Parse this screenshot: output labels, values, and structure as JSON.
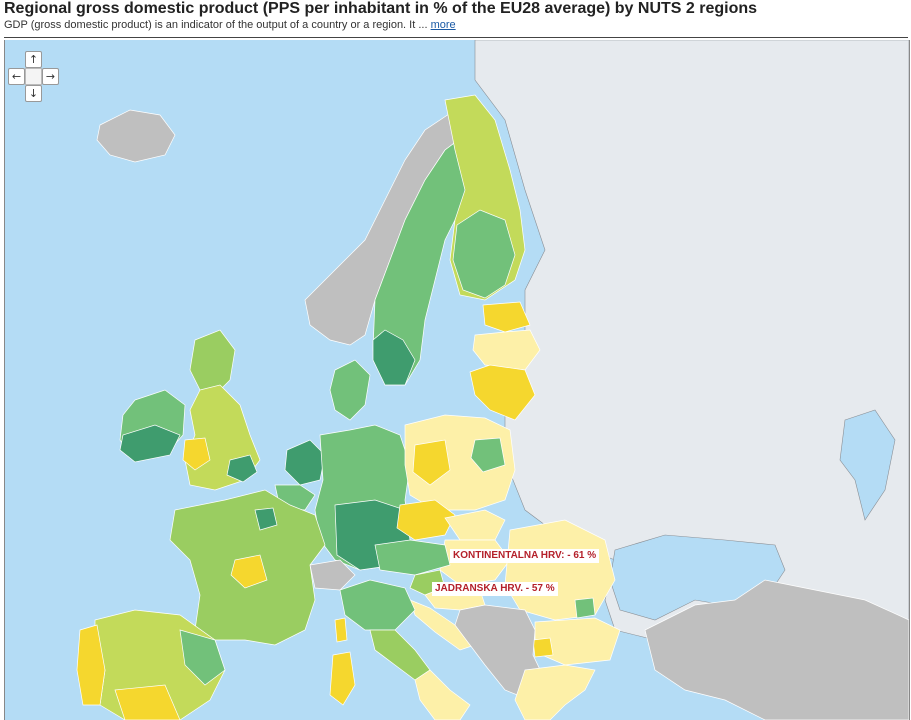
{
  "header": {
    "title": "Regional gross domestic product (PPS per inhabitant in % of the EU28 average) by NUTS 2 regions",
    "subtitle": "GDP (gross domestic product) is an indicator of the output of a country or a region. It ...",
    "more_label": "more"
  },
  "nav": {
    "up": "↑",
    "down": "↓",
    "left": "←",
    "right": "→"
  },
  "annotations": [
    {
      "label": "KONTINENTALNA HRV: - 61 %"
    },
    {
      "label": "JADRANSKA HRV. - 57 %"
    }
  ],
  "legend_colors": {
    "sea": "#b4dcf5",
    "non_eu_land": "#e6eaee",
    "no_data_grey": "#bfbfbf",
    "pale_yellow": "#fdf0a8",
    "yellow": "#f5d72e",
    "yellow_green": "#c3da5a",
    "light_green": "#9acd61",
    "green": "#72c17a",
    "dark_green": "#3f9c6e",
    "label_text": "#b4202a"
  }
}
